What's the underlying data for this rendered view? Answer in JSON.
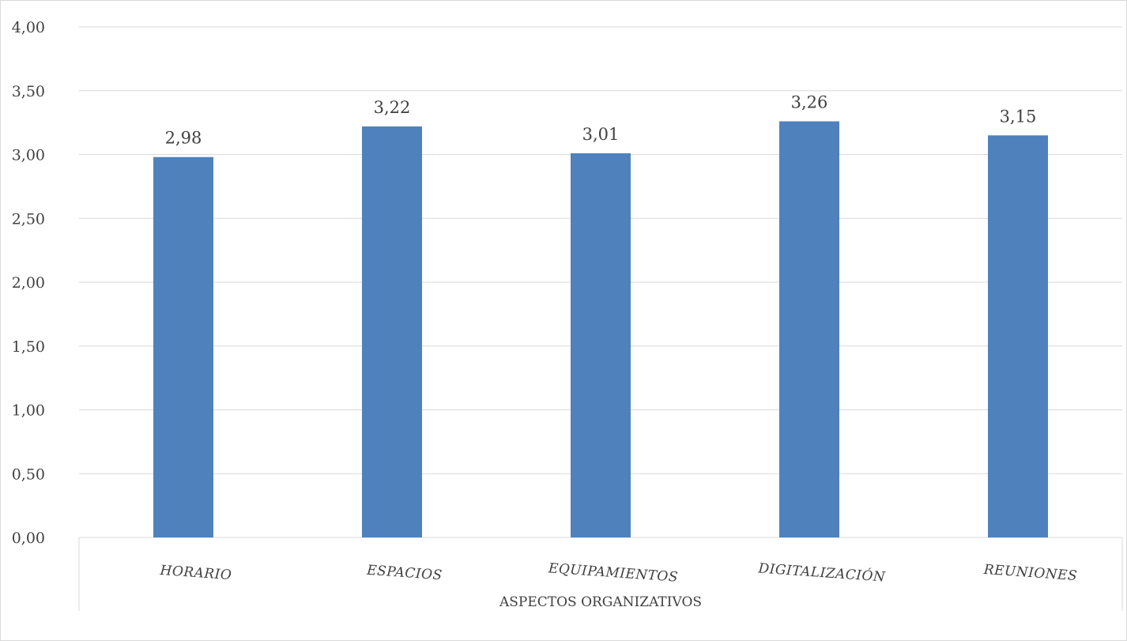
{
  "chart_data": {
    "type": "bar",
    "categories": [
      "HORARIO",
      "ESPACIOS",
      "EQUIPAMIENTOS",
      "DIGITALIZACIÓN",
      "REUNIONES"
    ],
    "values": [
      2.98,
      3.22,
      3.01,
      3.26,
      3.15
    ],
    "value_labels": [
      "2,98",
      "3,22",
      "3,01",
      "3,26",
      "3,15"
    ],
    "group_label": "ASPECTOS ORGANIZATIVOS",
    "ylim": [
      0,
      4
    ],
    "yticks": [
      "0,00",
      "0,50",
      "1,00",
      "1,50",
      "2,00",
      "2,50",
      "3,00",
      "3,50",
      "4,00"
    ],
    "grid": true,
    "bar_color": "#4f81bd",
    "grid_color": "#d9d9d9"
  }
}
